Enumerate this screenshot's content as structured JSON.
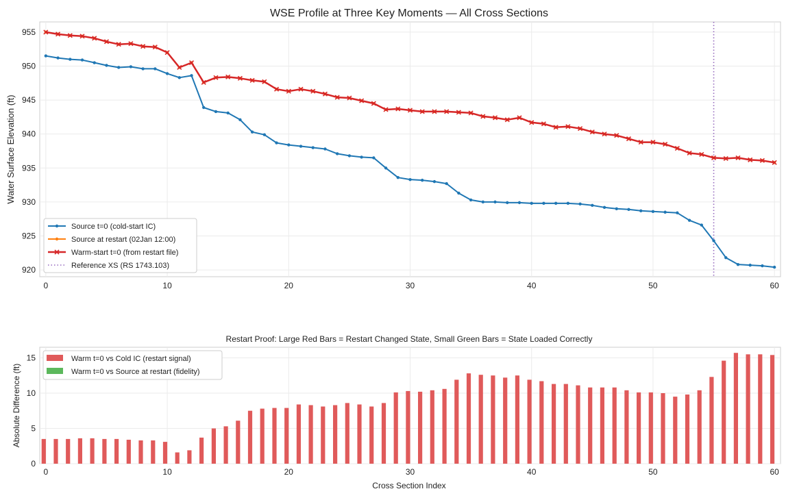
{
  "chart_data": [
    {
      "type": "line",
      "title": "WSE Profile at Three Key Moments — All Cross Sections",
      "xlabel": "",
      "ylabel": "Water Surface Elevation (ft)",
      "xlim": [
        -0.5,
        60.5
      ],
      "ylim": [
        919,
        956.5
      ],
      "x_ticks": [
        0,
        10,
        20,
        30,
        40,
        50,
        60
      ],
      "y_ticks": [
        920,
        925,
        930,
        935,
        940,
        945,
        950,
        955
      ],
      "grid": true,
      "legend_position": "lower-left",
      "x": [
        0,
        1,
        2,
        3,
        4,
        5,
        6,
        7,
        8,
        9,
        10,
        11,
        12,
        13,
        14,
        15,
        16,
        17,
        18,
        19,
        20,
        21,
        22,
        23,
        24,
        25,
        26,
        27,
        28,
        29,
        30,
        31,
        32,
        33,
        34,
        35,
        36,
        37,
        38,
        39,
        40,
        41,
        42,
        43,
        44,
        45,
        46,
        47,
        48,
        49,
        50,
        51,
        52,
        53,
        54,
        55,
        56,
        57,
        58,
        59,
        60
      ],
      "series": [
        {
          "name": "Source t=0 (cold-start IC)",
          "color": "#1f77b4",
          "marker": "dot",
          "values": [
            951.5,
            951.2,
            951.0,
            950.9,
            950.5,
            950.1,
            949.8,
            949.9,
            949.6,
            949.6,
            948.9,
            948.3,
            948.6,
            943.9,
            943.3,
            943.1,
            942.1,
            940.3,
            939.9,
            938.7,
            938.4,
            938.2,
            938.0,
            937.8,
            937.1,
            936.8,
            936.6,
            936.5,
            935.0,
            933.6,
            933.3,
            933.2,
            933.0,
            932.7,
            931.3,
            930.3,
            930.0,
            930.0,
            929.9,
            929.9,
            929.8,
            929.8,
            929.8,
            929.8,
            929.7,
            929.5,
            929.2,
            929.0,
            928.9,
            928.7,
            928.6,
            928.5,
            928.4,
            927.3,
            926.6,
            924.3,
            921.8,
            920.8,
            920.7,
            920.6,
            920.4
          ]
        },
        {
          "name": "Source at restart (02Jan 12:00)",
          "color": "#ff7f0e",
          "marker": "dot",
          "values": [
            955.0,
            954.7,
            954.5,
            954.4,
            954.1,
            953.6,
            953.2,
            953.3,
            952.9,
            952.8,
            952.0,
            949.8,
            950.5,
            947.6,
            948.3,
            948.4,
            948.2,
            947.9,
            947.7,
            946.6,
            946.3,
            946.6,
            946.3,
            945.9,
            945.4,
            945.3,
            944.9,
            944.5,
            943.6,
            943.7,
            943.5,
            943.3,
            943.3,
            943.3,
            943.2,
            943.1,
            942.6,
            942.4,
            942.1,
            942.4,
            941.7,
            941.5,
            941.0,
            941.1,
            940.8,
            940.3,
            940.0,
            939.8,
            939.3,
            938.8,
            938.8,
            938.5,
            937.9,
            937.2,
            937.0,
            936.5,
            936.4,
            936.5,
            936.2,
            936.1,
            935.8
          ]
        },
        {
          "name": "Warm-start t=0 (from restart file)",
          "color": "#d62728",
          "marker": "x",
          "values": [
            955.0,
            954.7,
            954.5,
            954.4,
            954.1,
            953.6,
            953.2,
            953.3,
            952.9,
            952.8,
            952.0,
            949.8,
            950.5,
            947.6,
            948.3,
            948.4,
            948.2,
            947.9,
            947.7,
            946.6,
            946.3,
            946.6,
            946.3,
            945.9,
            945.4,
            945.3,
            944.9,
            944.5,
            943.6,
            943.7,
            943.5,
            943.3,
            943.3,
            943.3,
            943.2,
            943.1,
            942.6,
            942.4,
            942.1,
            942.4,
            941.7,
            941.5,
            941.0,
            941.1,
            940.8,
            940.3,
            940.0,
            939.8,
            939.3,
            938.8,
            938.8,
            938.5,
            937.9,
            937.2,
            937.0,
            936.5,
            936.4,
            936.5,
            936.2,
            936.1,
            935.8
          ]
        }
      ],
      "reference_line": {
        "name": "Reference XS (RS 1743.103)",
        "x": 55,
        "color": "#9467bd",
        "style": "dotted"
      }
    },
    {
      "type": "bar",
      "title": "Restart Proof: Large Red Bars = Restart Changed State, Small Green Bars = State Loaded Correctly",
      "xlabel": "Cross Section Index",
      "ylabel": "Absolute Difference (ft)",
      "xlim": [
        -0.5,
        60.5
      ],
      "ylim": [
        0,
        16.5
      ],
      "x_ticks": [
        0,
        10,
        20,
        30,
        40,
        50,
        60
      ],
      "y_ticks": [
        0,
        5,
        10,
        15
      ],
      "grid": true,
      "legend_position": "top-left",
      "x": [
        0,
        1,
        2,
        3,
        4,
        5,
        6,
        7,
        8,
        9,
        10,
        11,
        12,
        13,
        14,
        15,
        16,
        17,
        18,
        19,
        20,
        21,
        22,
        23,
        24,
        25,
        26,
        27,
        28,
        29,
        30,
        31,
        32,
        33,
        34,
        35,
        36,
        37,
        38,
        39,
        40,
        41,
        42,
        43,
        44,
        45,
        46,
        47,
        48,
        49,
        50,
        51,
        52,
        53,
        54,
        55,
        56,
        57,
        58,
        59,
        60
      ],
      "series": [
        {
          "name": "Warm t=0 vs Cold IC (restart signal)",
          "color": "#e05a5a",
          "values": [
            3.5,
            3.5,
            3.5,
            3.6,
            3.6,
            3.5,
            3.5,
            3.4,
            3.3,
            3.3,
            3.1,
            1.6,
            1.9,
            3.7,
            5.0,
            5.3,
            6.1,
            7.5,
            7.8,
            7.9,
            7.9,
            8.4,
            8.3,
            8.1,
            8.3,
            8.6,
            8.4,
            8.1,
            8.6,
            10.1,
            10.3,
            10.2,
            10.4,
            10.6,
            11.9,
            12.8,
            12.6,
            12.5,
            12.2,
            12.5,
            11.9,
            11.7,
            11.3,
            11.3,
            11.1,
            10.8,
            10.8,
            10.8,
            10.4,
            10.1,
            10.1,
            10.0,
            9.5,
            9.8,
            10.4,
            12.3,
            14.6,
            15.7,
            15.5,
            15.5,
            15.4
          ]
        },
        {
          "name": "Warm t=0 vs Source at restart (fidelity)",
          "color": "#5cb85c",
          "values": [
            0,
            0,
            0,
            0,
            0,
            0,
            0,
            0,
            0,
            0,
            0,
            0,
            0,
            0,
            0,
            0,
            0,
            0,
            0,
            0,
            0,
            0,
            0,
            0,
            0,
            0,
            0,
            0,
            0,
            0,
            0,
            0,
            0,
            0,
            0,
            0,
            0,
            0,
            0,
            0,
            0,
            0,
            0,
            0,
            0,
            0,
            0,
            0,
            0,
            0,
            0,
            0,
            0,
            0,
            0,
            0,
            0,
            0,
            0,
            0,
            0
          ]
        }
      ]
    }
  ]
}
